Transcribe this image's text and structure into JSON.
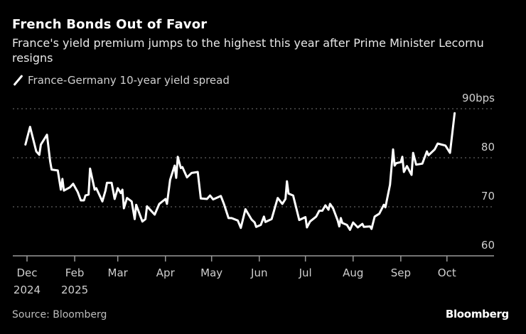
{
  "chart_data": {
    "type": "line",
    "title": "French Bonds Out of Favor",
    "subtitle": "France's yield premium jumps to the highest this year after Prime Minister Lecornu resigns",
    "legend_placement": "top-left",
    "grid": true,
    "ylim": [
      60,
      90
    ],
    "y_ticks": [
      {
        "value": 90,
        "label": "90bps"
      },
      {
        "value": 80,
        "label": "80"
      },
      {
        "value": 70,
        "label": "70"
      },
      {
        "value": 60,
        "label": "60"
      }
    ],
    "x_ticks": [
      {
        "label": "Dec",
        "sublabel": "2024",
        "date": "2025-01-01"
      },
      {
        "label": "Feb",
        "sublabel": "2025",
        "date": "2025-02-01"
      },
      {
        "label": "Mar",
        "sublabel": "",
        "date": "2025-03-01"
      },
      {
        "label": "Apr",
        "sublabel": "",
        "date": "2025-04-01"
      },
      {
        "label": "May",
        "sublabel": "",
        "date": "2025-05-01"
      },
      {
        "label": "Jun",
        "sublabel": "",
        "date": "2025-06-01"
      },
      {
        "label": "Jul",
        "sublabel": "",
        "date": "2025-07-01"
      },
      {
        "label": "Aug",
        "sublabel": "",
        "date": "2025-08-01"
      },
      {
        "label": "Sep",
        "sublabel": "",
        "date": "2025-09-01"
      },
      {
        "label": "Oct",
        "sublabel": "",
        "date": "2025-10-01"
      }
    ],
    "series": [
      {
        "name": "France-Germany 10-year yield spread",
        "color": "#ffffff",
        "points": [
          [
            "2024-12-31",
            82.7
          ],
          [
            "2025-01-03",
            86.3
          ],
          [
            "2025-01-07",
            81.3
          ],
          [
            "2025-01-09",
            80.6
          ],
          [
            "2025-01-10",
            82.7
          ],
          [
            "2025-01-14",
            84.7
          ],
          [
            "2025-01-16",
            79.3
          ],
          [
            "2025-01-17",
            77.6
          ],
          [
            "2025-01-21",
            77.4
          ],
          [
            "2025-01-23",
            73.5
          ],
          [
            "2025-01-24",
            75.7
          ],
          [
            "2025-01-25",
            73.3
          ],
          [
            "2025-01-29",
            74.0
          ],
          [
            "2025-01-31",
            74.7
          ],
          [
            "2025-02-03",
            73.0
          ],
          [
            "2025-02-05",
            71.3
          ],
          [
            "2025-02-07",
            71.3
          ],
          [
            "2025-02-08",
            72.3
          ],
          [
            "2025-02-10",
            72.5
          ],
          [
            "2025-02-11",
            77.8
          ],
          [
            "2025-02-14",
            73.5
          ],
          [
            "2025-02-15",
            73.8
          ],
          [
            "2025-02-19",
            71.1
          ],
          [
            "2025-02-21",
            73.3
          ],
          [
            "2025-02-22",
            74.9
          ],
          [
            "2025-02-25",
            74.9
          ],
          [
            "2025-02-27",
            71.6
          ],
          [
            "2025-03-01",
            73.8
          ],
          [
            "2025-03-03",
            72.8
          ],
          [
            "2025-03-04",
            73.5
          ],
          [
            "2025-03-05",
            69.7
          ],
          [
            "2025-03-07",
            71.8
          ],
          [
            "2025-03-10",
            71.1
          ],
          [
            "2025-03-12",
            67.5
          ],
          [
            "2025-03-13",
            70.4
          ],
          [
            "2025-03-17",
            67.0
          ],
          [
            "2025-03-19",
            67.5
          ],
          [
            "2025-03-20",
            70.1
          ],
          [
            "2025-03-25",
            68.4
          ],
          [
            "2025-03-28",
            70.6
          ],
          [
            "2025-04-01",
            71.6
          ],
          [
            "2025-04-02",
            70.6
          ],
          [
            "2025-04-04",
            75.5
          ],
          [
            "2025-04-07",
            78.4
          ],
          [
            "2025-04-08",
            75.9
          ],
          [
            "2025-04-09",
            80.2
          ],
          [
            "2025-04-11",
            77.9
          ],
          [
            "2025-04-12",
            78.1
          ],
          [
            "2025-04-15",
            76.0
          ],
          [
            "2025-04-18",
            76.9
          ],
          [
            "2025-04-22",
            77.1
          ],
          [
            "2025-04-24",
            71.7
          ],
          [
            "2025-04-28",
            71.6
          ],
          [
            "2025-04-30",
            72.3
          ],
          [
            "2025-05-02",
            71.5
          ],
          [
            "2025-05-07",
            72.2
          ],
          [
            "2025-05-09",
            70.6
          ],
          [
            "2025-05-12",
            67.7
          ],
          [
            "2025-05-14",
            67.7
          ],
          [
            "2025-05-18",
            67.2
          ],
          [
            "2025-05-20",
            65.7
          ],
          [
            "2025-05-23",
            69.5
          ],
          [
            "2025-05-27",
            67.4
          ],
          [
            "2025-05-29",
            66.8
          ],
          [
            "2025-05-30",
            65.9
          ],
          [
            "2025-06-02",
            66.3
          ],
          [
            "2025-06-04",
            68.0
          ],
          [
            "2025-06-05",
            66.9
          ],
          [
            "2025-06-09",
            67.5
          ],
          [
            "2025-06-13",
            71.8
          ],
          [
            "2025-06-16",
            70.6
          ],
          [
            "2025-06-18",
            71.6
          ],
          [
            "2025-06-19",
            75.2
          ],
          [
            "2025-06-20",
            72.7
          ],
          [
            "2025-06-23",
            72.3
          ],
          [
            "2025-06-27",
            67.3
          ],
          [
            "2025-07-01",
            67.9
          ],
          [
            "2025-07-02",
            65.8
          ],
          [
            "2025-07-04",
            67.0
          ],
          [
            "2025-07-08",
            68.0
          ],
          [
            "2025-07-10",
            69.2
          ],
          [
            "2025-07-12",
            69.2
          ],
          [
            "2025-07-14",
            70.3
          ],
          [
            "2025-07-16",
            69.4
          ],
          [
            "2025-07-17",
            70.6
          ],
          [
            "2025-07-19",
            69.7
          ],
          [
            "2025-07-22",
            67.2
          ],
          [
            "2025-07-23",
            66.0
          ],
          [
            "2025-07-24",
            67.7
          ],
          [
            "2025-07-25",
            66.7
          ],
          [
            "2025-07-28",
            66.3
          ],
          [
            "2025-07-30",
            65.3
          ],
          [
            "2025-08-01",
            66.8
          ],
          [
            "2025-08-04",
            65.8
          ],
          [
            "2025-08-07",
            66.5
          ],
          [
            "2025-08-08",
            65.9
          ],
          [
            "2025-08-12",
            66.0
          ],
          [
            "2025-08-13",
            65.5
          ],
          [
            "2025-08-15",
            68.0
          ],
          [
            "2025-08-18",
            68.6
          ],
          [
            "2025-08-21",
            70.4
          ],
          [
            "2025-08-22",
            69.9
          ],
          [
            "2025-08-25",
            74.5
          ],
          [
            "2025-08-27",
            81.7
          ],
          [
            "2025-08-28",
            78.4
          ],
          [
            "2025-08-29",
            78.9
          ],
          [
            "2025-09-01",
            79.1
          ],
          [
            "2025-09-02",
            80.2
          ],
          [
            "2025-09-03",
            77.1
          ],
          [
            "2025-09-05",
            78.3
          ],
          [
            "2025-09-08",
            76.5
          ],
          [
            "2025-09-09",
            81.0
          ],
          [
            "2025-09-11",
            78.6
          ],
          [
            "2025-09-15",
            78.8
          ],
          [
            "2025-09-18",
            81.3
          ],
          [
            "2025-09-19",
            80.5
          ],
          [
            "2025-09-23",
            81.7
          ],
          [
            "2025-09-25",
            82.9
          ],
          [
            "2025-09-30",
            82.5
          ],
          [
            "2025-10-03",
            81.0
          ],
          [
            "2025-10-06",
            89.1
          ]
        ]
      }
    ]
  },
  "legend": {
    "label": "France-Germany 10-year yield spread"
  },
  "footer": {
    "source": "Source: Bloomberg",
    "logo": "Bloomberg"
  },
  "colors": {
    "background": "#000000",
    "line": "#ffffff",
    "grid": "#777777",
    "axis": "#999999"
  }
}
